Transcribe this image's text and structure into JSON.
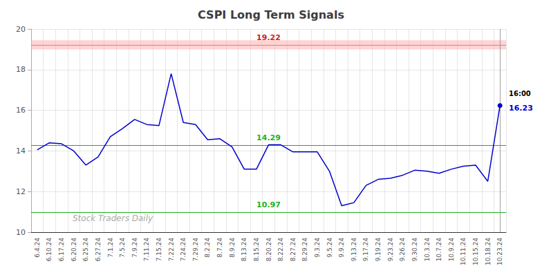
{
  "chart_data": {
    "type": "line",
    "title": "CSPI Long Term Signals",
    "categories": [
      "6.4.24",
      "6.10.24",
      "6.17.24",
      "6.20.24",
      "6.25.24",
      "6.27.24",
      "7.1.24",
      "7.5.24",
      "7.9.24",
      "7.11.24",
      "7.15.24",
      "7.22.24",
      "7.24.24",
      "7.29.24",
      "8.2.24",
      "8.7.24",
      "8.9.24",
      "8.13.24",
      "8.15.24",
      "8.20.24",
      "8.22.24",
      "8.27.24",
      "8.29.24",
      "9.3.24",
      "9.5.24",
      "9.9.24",
      "9.13.24",
      "9.17.24",
      "9.19.24",
      "9.23.24",
      "9.26.24",
      "9.30.24",
      "10.3.24",
      "10.7.24",
      "10.9.24",
      "10.11.24",
      "10.15.24",
      "10.18.24",
      "10.23.24"
    ],
    "values": [
      14.05,
      14.4,
      14.35,
      14.0,
      13.3,
      13.7,
      14.7,
      15.1,
      15.55,
      15.3,
      15.25,
      17.8,
      15.4,
      15.3,
      14.55,
      14.6,
      14.2,
      13.1,
      13.1,
      14.3,
      14.3,
      13.95,
      13.95,
      13.95,
      13.0,
      11.3,
      11.45,
      12.3,
      12.6,
      12.65,
      12.8,
      13.05,
      13.0,
      12.9,
      13.1,
      13.25,
      13.3,
      12.5,
      16.23
    ],
    "color": "#0000cc",
    "ylim": [
      10,
      20
    ],
    "yticks": [
      10,
      12,
      14,
      16,
      18,
      20
    ],
    "grid": true,
    "levels": [
      {
        "value": 19.22,
        "label": "19.22",
        "color": "#cc0000",
        "line_color": "#ff6666",
        "band": [
          19.0,
          19.45
        ],
        "band_color": "#ffaaaa"
      },
      {
        "value": 14.29,
        "label": "14.29",
        "color": "#00aa00",
        "line_color": "#00aa00"
      },
      {
        "value": 10.97,
        "label": "10.97",
        "color": "#00aa00",
        "line_color": "#00aa00"
      }
    ],
    "last_point": {
      "time_label": "16:00",
      "value_label": "16.23",
      "value_label_color": "#0000cc"
    },
    "watermark": "Stock Traders Daily"
  }
}
